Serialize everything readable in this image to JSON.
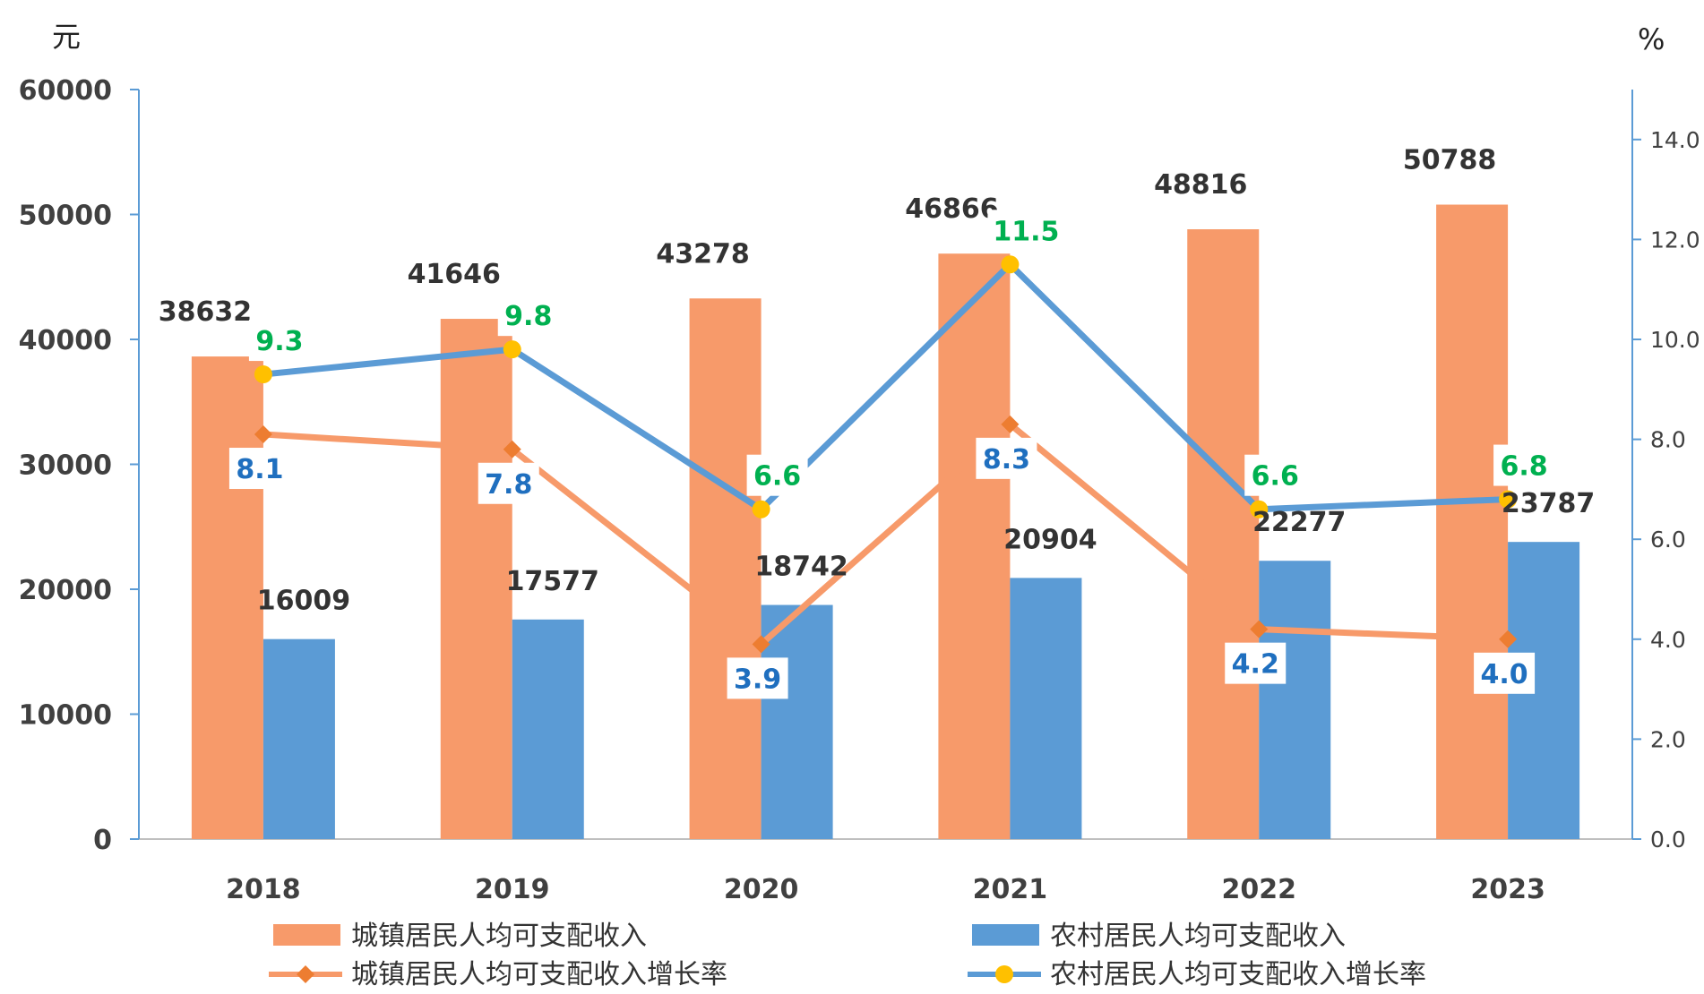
{
  "chart_data": {
    "type": "bar",
    "categories": [
      "2018",
      "2019",
      "2020",
      "2021",
      "2022",
      "2023"
    ],
    "left_axis": {
      "unit_label": "元",
      "ylim": [
        0,
        60000
      ],
      "ticks": [
        "0",
        "10000",
        "20000",
        "30000",
        "40000",
        "50000",
        "60000"
      ]
    },
    "right_axis": {
      "unit_label": "%",
      "ylim": [
        0,
        15
      ],
      "ticks": [
        "0.0",
        "2.0",
        "4.0",
        "6.0",
        "8.0",
        "10.0",
        "12.0",
        "14.0"
      ]
    },
    "series": [
      {
        "name": "城镇居民人均可支配收入",
        "kind": "bar",
        "axis": "left",
        "color": "#F79A6A",
        "values": [
          38632,
          41646,
          43278,
          46866,
          48816,
          50788
        ],
        "labels": [
          "38632",
          "41646",
          "43278",
          "46866",
          "48816",
          "50788"
        ]
      },
      {
        "name": "农村居民人均可支配收入",
        "kind": "bar",
        "axis": "left",
        "color": "#5B9BD5",
        "values": [
          16009,
          17577,
          18742,
          20904,
          22277,
          23787
        ],
        "labels": [
          "16009",
          "17577",
          "18742",
          "20904",
          "22277",
          "23787"
        ]
      },
      {
        "name": "城镇居民人均可支配收入增长率",
        "kind": "line",
        "axis": "right",
        "color": "#F79A6A",
        "marker": "diamond",
        "marker_color": "#ED7D31",
        "label_color": "#1F6FBF",
        "values": [
          8.1,
          7.8,
          3.9,
          8.3,
          4.2,
          4.0
        ],
        "labels": [
          "8.1",
          "7.8",
          "3.9",
          "8.3",
          "4.2",
          "4.0"
        ]
      },
      {
        "name": "农村居民人均可支配收入增长率",
        "kind": "line",
        "axis": "right",
        "color": "#5B9BD5",
        "marker": "circle",
        "marker_color": "#FFC000",
        "label_color": "#00B050",
        "values": [
          9.3,
          9.8,
          6.6,
          11.5,
          6.6,
          6.8
        ],
        "labels": [
          "9.3",
          "9.8",
          "6.6",
          "11.5",
          "6.6",
          "6.8"
        ]
      }
    ],
    "legend_position": "bottom",
    "grid": false
  }
}
